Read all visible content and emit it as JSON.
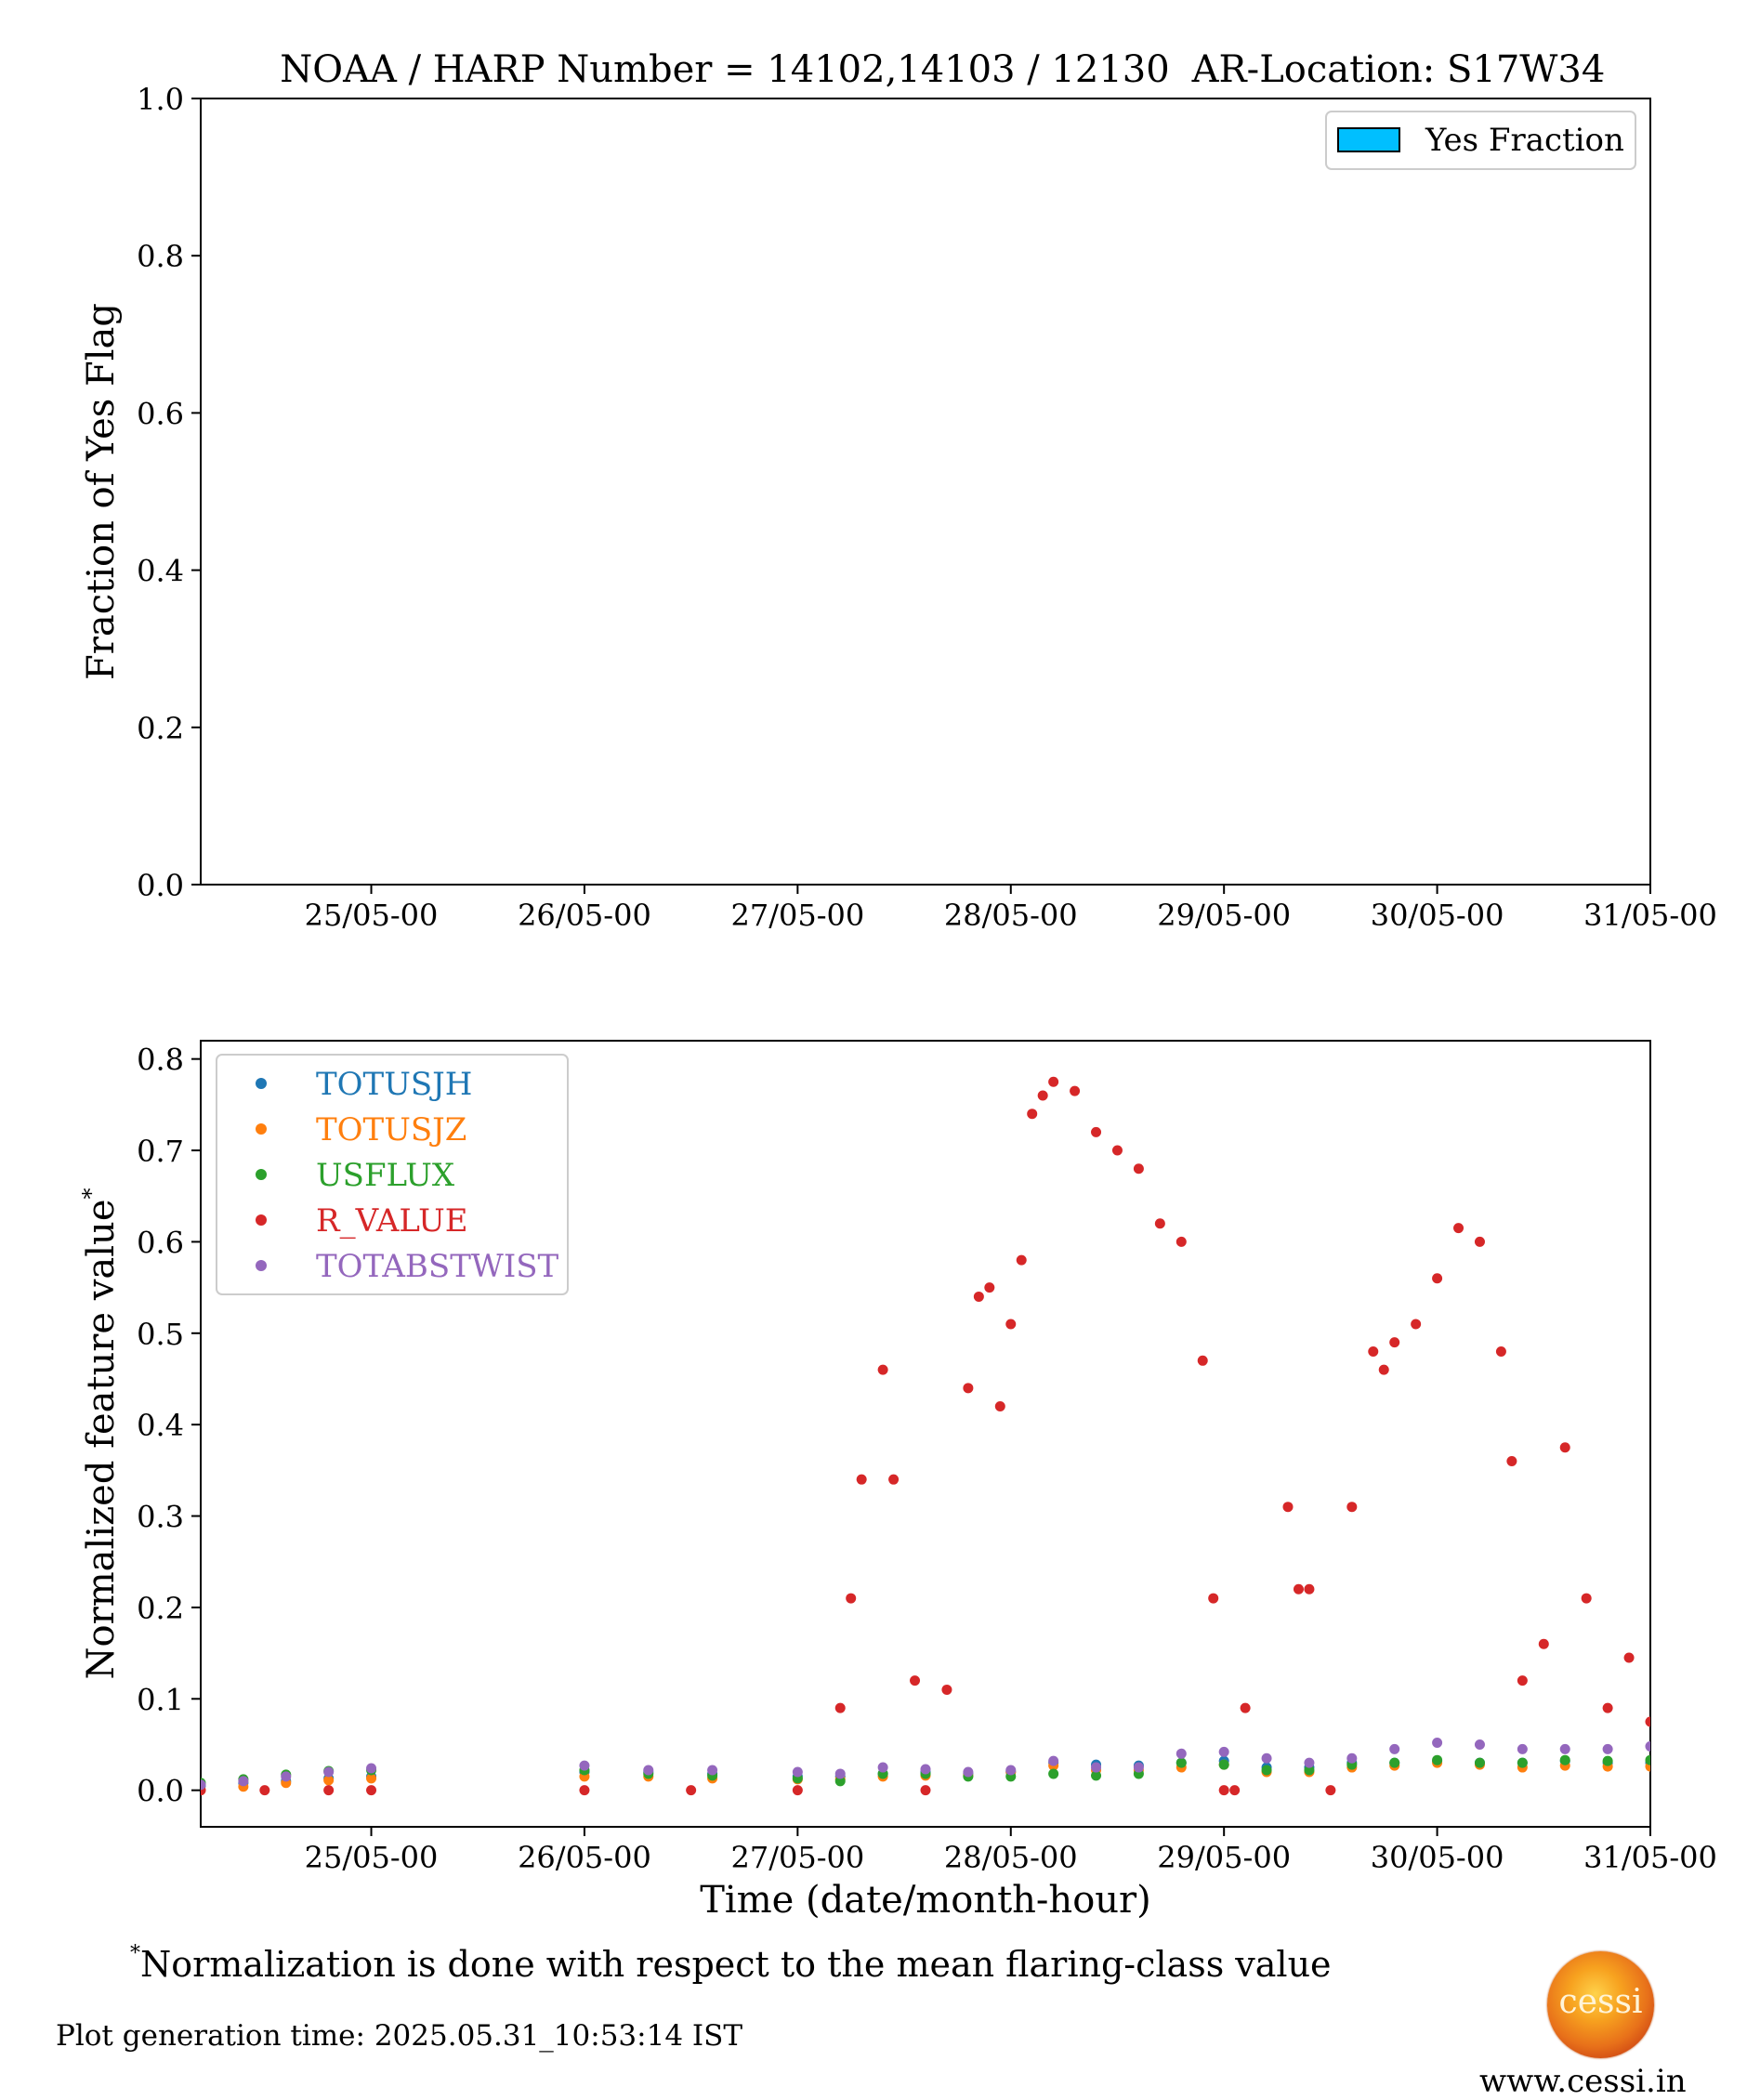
{
  "colors": {
    "TOTUSJH": "#1f77b4",
    "TOTUSJZ": "#ff7f0e",
    "USFLUX": "#2ca02c",
    "R_VALUE": "#d62728",
    "TOTABSTWIST": "#9467bd",
    "yes_fraction": "#00bfff"
  },
  "chart_data": [
    {
      "type": "bar",
      "title_left": "NOAA / HARP Number = 14102,14103 / 12130",
      "title_right": "AR-Location: S17W34",
      "ylabel": "Fraction of Yes Flag",
      "ylim": [
        0,
        1.0
      ],
      "yticks": [
        "0.0",
        "0.2",
        "0.4",
        "0.6",
        "0.8",
        "1.0"
      ],
      "xticks": [
        "25/05-00",
        "26/05-00",
        "27/05-00",
        "28/05-00",
        "29/05-00",
        "30/05-00",
        "31/05-00"
      ],
      "xlim_days": [
        24.2,
        31.0
      ],
      "legend": [
        "Yes Fraction"
      ],
      "legend_position": "upper-right",
      "values": []
    },
    {
      "type": "scatter",
      "ylabel": "Normalized feature value",
      "ylabel_mark": "*",
      "xlabel": "Time (date/month-hour)",
      "ylim": [
        -0.04,
        0.82
      ],
      "yticks": [
        "0.0",
        "0.1",
        "0.2",
        "0.3",
        "0.4",
        "0.5",
        "0.6",
        "0.7",
        "0.8"
      ],
      "xticks": [
        "25/05-00",
        "26/05-00",
        "27/05-00",
        "28/05-00",
        "29/05-00",
        "30/05-00",
        "31/05-00"
      ],
      "xlim_days": [
        24.2,
        31.0
      ],
      "legend_position": "upper-left",
      "series": [
        {
          "name": "TOTUSJH",
          "x": [
            24.2,
            24.4,
            24.6,
            24.8,
            25.0,
            26.0,
            26.3,
            26.6,
            27.0,
            27.2,
            27.4,
            27.6,
            27.8,
            28.0,
            28.2,
            28.4,
            28.6,
            28.8,
            29.0,
            29.2,
            29.4,
            29.6,
            29.8,
            30.0,
            30.2,
            30.4,
            30.6,
            30.8,
            31.0
          ],
          "values": [
            0.005,
            0.008,
            0.01,
            0.013,
            0.015,
            0.02,
            0.02,
            0.018,
            0.015,
            0.015,
            0.018,
            0.02,
            0.018,
            0.02,
            0.03,
            0.028,
            0.027,
            0.03,
            0.032,
            0.025,
            0.025,
            0.03,
            0.03,
            0.032,
            0.03,
            0.03,
            0.032,
            0.03,
            0.03
          ]
        },
        {
          "name": "TOTUSJZ",
          "x": [
            24.2,
            24.4,
            24.6,
            24.8,
            25.0,
            26.0,
            26.3,
            26.6,
            27.0,
            27.2,
            27.4,
            27.6,
            27.8,
            28.0,
            28.2,
            28.4,
            28.6,
            28.8,
            29.0,
            29.2,
            29.4,
            29.6,
            29.8,
            30.0,
            30.2,
            30.4,
            30.6,
            30.8,
            31.0
          ],
          "values": [
            0.0,
            0.004,
            0.008,
            0.011,
            0.013,
            0.015,
            0.015,
            0.013,
            0.012,
            0.012,
            0.015,
            0.016,
            0.016,
            0.02,
            0.027,
            0.022,
            0.022,
            0.025,
            0.028,
            0.02,
            0.02,
            0.025,
            0.027,
            0.03,
            0.028,
            0.025,
            0.027,
            0.026,
            0.026
          ]
        },
        {
          "name": "USFLUX",
          "x": [
            24.2,
            24.4,
            24.6,
            24.8,
            25.0,
            26.0,
            26.3,
            26.6,
            27.0,
            27.2,
            27.4,
            27.6,
            27.8,
            28.0,
            28.2,
            28.4,
            28.6,
            28.8,
            29.0,
            29.2,
            29.4,
            29.6,
            29.8,
            30.0,
            30.2,
            30.4,
            30.6,
            30.8,
            31.0
          ],
          "values": [
            0.008,
            0.012,
            0.017,
            0.021,
            0.022,
            0.022,
            0.018,
            0.016,
            0.013,
            0.01,
            0.018,
            0.018,
            0.015,
            0.015,
            0.018,
            0.016,
            0.018,
            0.03,
            0.028,
            0.022,
            0.022,
            0.028,
            0.03,
            0.033,
            0.03,
            0.03,
            0.033,
            0.032,
            0.033
          ]
        },
        {
          "name": "R_VALUE",
          "x": [
            24.2,
            24.5,
            24.8,
            25.0,
            26.0,
            26.5,
            27.0,
            27.2,
            27.25,
            27.3,
            27.4,
            27.45,
            27.55,
            27.6,
            27.7,
            27.8,
            27.85,
            27.9,
            27.95,
            28.0,
            28.05,
            28.1,
            28.15,
            28.2,
            28.3,
            28.4,
            28.5,
            28.6,
            28.7,
            28.8,
            28.9,
            28.95,
            29.0,
            29.05,
            29.1,
            29.3,
            29.35,
            29.4,
            29.5,
            29.6,
            29.7,
            29.75,
            29.8,
            29.9,
            30.0,
            30.1,
            30.2,
            30.3,
            30.35,
            30.4,
            30.5,
            30.6,
            30.7,
            30.8,
            30.9,
            31.0
          ],
          "values": [
            0.0,
            0.0,
            0.0,
            0.0,
            0.0,
            0.0,
            0.0,
            0.09,
            0.21,
            0.34,
            0.46,
            0.34,
            0.12,
            0.0,
            0.11,
            0.44,
            0.54,
            0.55,
            0.42,
            0.51,
            0.58,
            0.74,
            0.76,
            0.775,
            0.765,
            0.72,
            0.7,
            0.68,
            0.62,
            0.6,
            0.47,
            0.21,
            0.0,
            0.0,
            0.09,
            0.31,
            0.22,
            0.22,
            0.0,
            0.31,
            0.48,
            0.46,
            0.49,
            0.51,
            0.56,
            0.615,
            0.6,
            0.48,
            0.36,
            0.12,
            0.16,
            0.375,
            0.21,
            0.09,
            0.145,
            0.075
          ]
        },
        {
          "name": "TOTABSTWIST",
          "x": [
            24.2,
            24.4,
            24.6,
            24.8,
            25.0,
            26.0,
            26.3,
            26.6,
            27.0,
            27.2,
            27.4,
            27.6,
            27.8,
            28.0,
            28.2,
            28.4,
            28.6,
            28.8,
            29.0,
            29.2,
            29.4,
            29.6,
            29.8,
            30.0,
            30.2,
            30.4,
            30.6,
            30.8,
            31.0
          ],
          "values": [
            0.006,
            0.01,
            0.015,
            0.02,
            0.024,
            0.027,
            0.022,
            0.022,
            0.02,
            0.018,
            0.025,
            0.023,
            0.02,
            0.022,
            0.032,
            0.025,
            0.025,
            0.04,
            0.042,
            0.035,
            0.03,
            0.035,
            0.045,
            0.052,
            0.05,
            0.045,
            0.045,
            0.045,
            0.048
          ]
        }
      ]
    }
  ],
  "footer": {
    "footnote_mark": "*",
    "footnote_text": "Normalization is done with respect to the mean flaring-class value",
    "generation_time": "Plot generation time: 2025.05.31_10:53:14 IST",
    "logo_text": "cessi",
    "website": "www.cessi.in"
  }
}
